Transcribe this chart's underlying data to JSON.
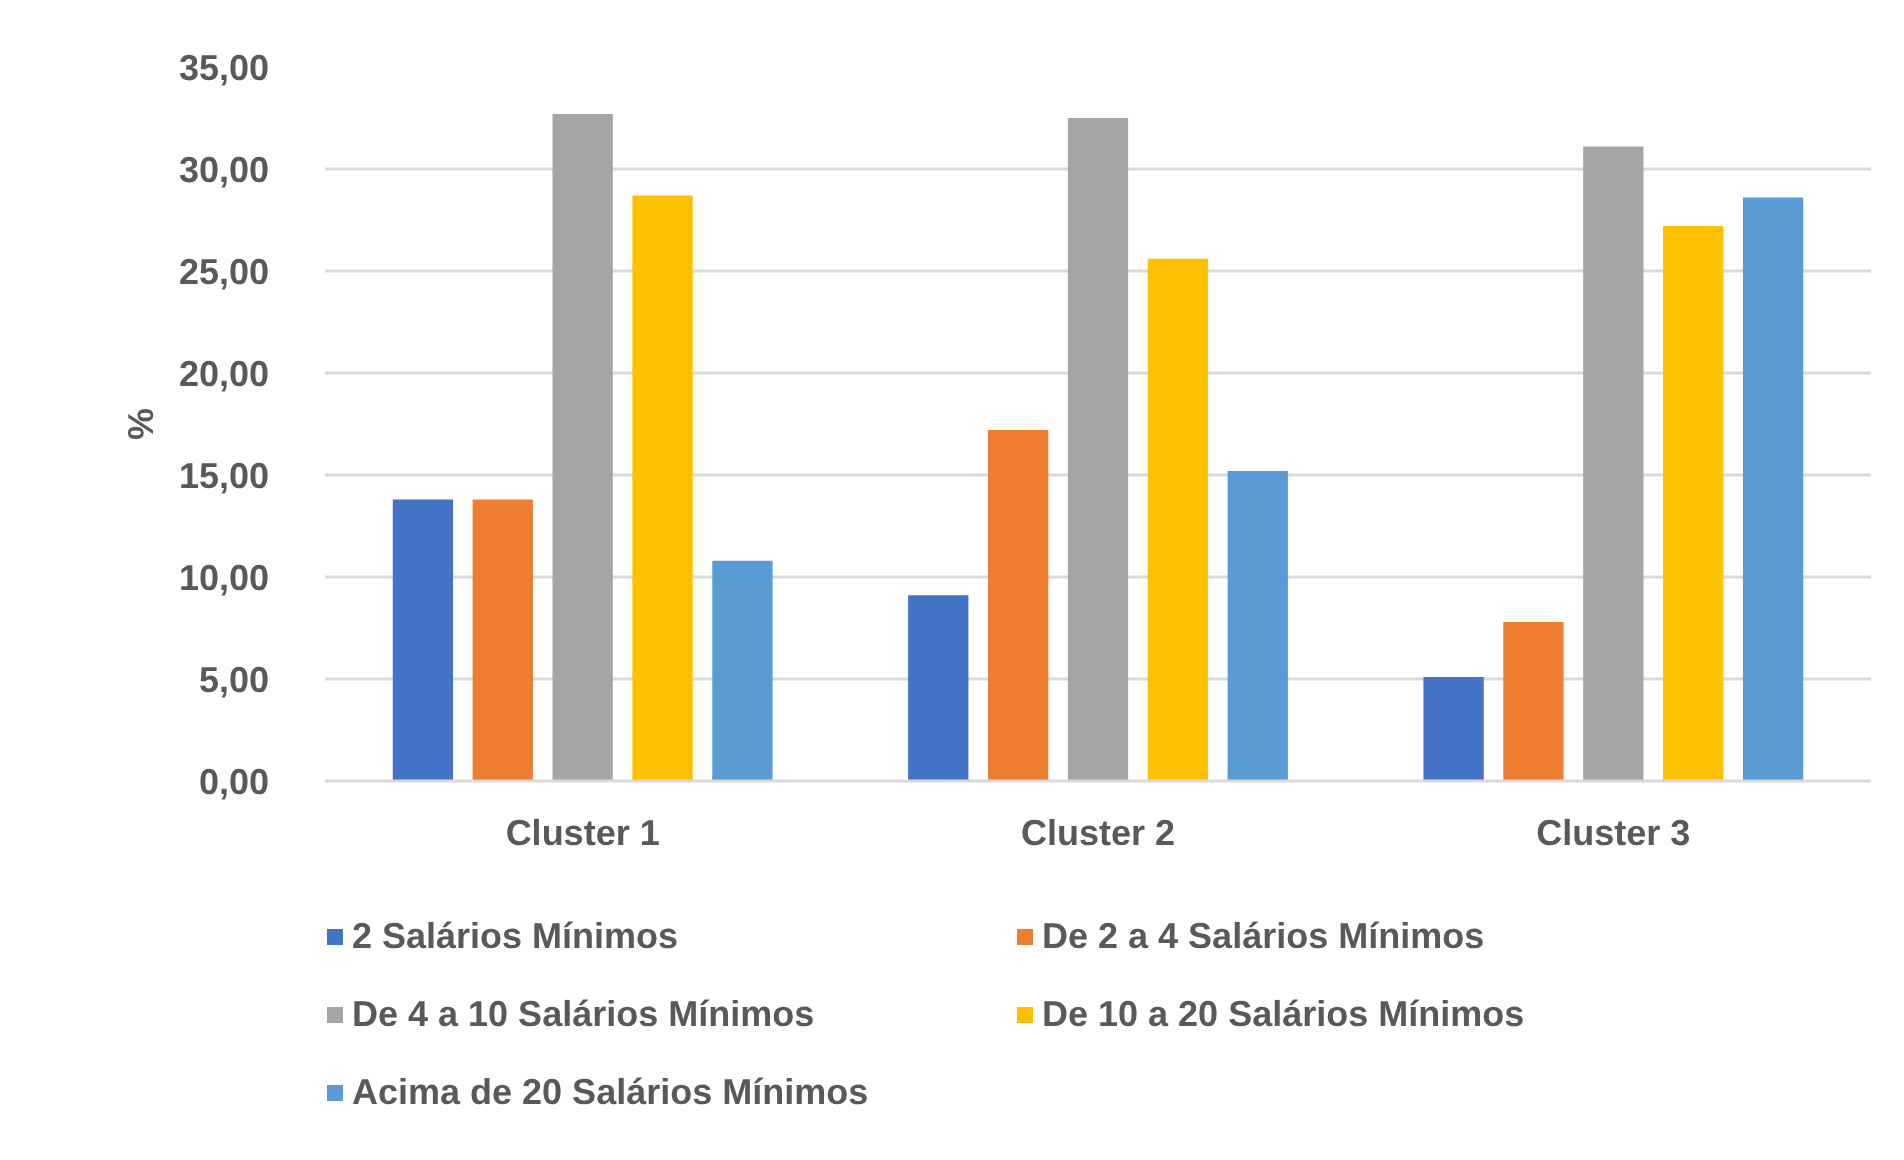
{
  "chart_data": {
    "type": "bar",
    "ylabel": "%",
    "categories": [
      "Cluster 1",
      "Cluster 2",
      "Cluster 3"
    ],
    "series": [
      {
        "name": "2 Salários Mínimos",
        "color": "#4472c4",
        "values": [
          13.8,
          9.1,
          5.1
        ]
      },
      {
        "name": "De 2 a 4 Salários Mínimos",
        "color": "#ed7d31",
        "values": [
          13.8,
          17.2,
          7.8
        ]
      },
      {
        "name": "De 4 a 10 Salários Mínimos",
        "color": "#a5a5a5",
        "values": [
          32.7,
          32.5,
          31.1
        ]
      },
      {
        "name": "De 10 a 20 Salários Mínimos",
        "color": "#ffc000",
        "values": [
          28.7,
          25.6,
          27.2
        ]
      },
      {
        "name": "Acima de 20 Salários Mínimos",
        "color": "#5b9bd5",
        "values": [
          10.8,
          15.2,
          28.6
        ]
      }
    ],
    "ylim": [
      0,
      35
    ],
    "yticks": [
      {
        "value": 0,
        "label": "0,00"
      },
      {
        "value": 5,
        "label": "5,00"
      },
      {
        "value": 10,
        "label": "10,00"
      },
      {
        "value": 15,
        "label": "15,00"
      },
      {
        "value": 20,
        "label": "20,00"
      },
      {
        "value": 25,
        "label": "25,00"
      },
      {
        "value": 30,
        "label": "30,00"
      },
      {
        "value": 35,
        "label": "35,00"
      }
    ],
    "grid": "y",
    "legend": "bottom"
  }
}
